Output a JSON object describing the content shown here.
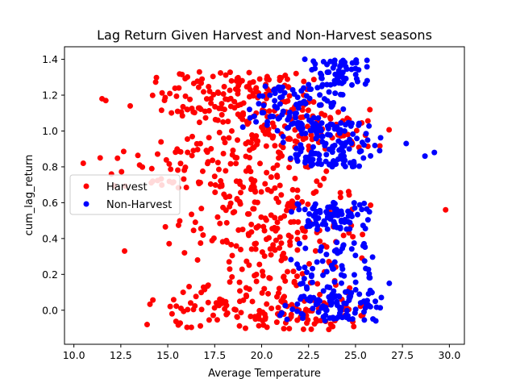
{
  "chart_data": {
    "type": "scatter",
    "title": "Lag Return Given Harvest and Non-Harvest seasons",
    "xlabel": "Average Temperature",
    "ylabel": "cum_lag_return",
    "xlim": [
      9.5,
      30.8
    ],
    "ylim": [
      -0.19,
      1.47
    ],
    "xticks": [
      "10.0",
      "12.5",
      "15.0",
      "17.5",
      "20.0",
      "22.5",
      "25.0",
      "27.5",
      "30.0"
    ],
    "yticks": [
      "0.0",
      "0.2",
      "0.4",
      "0.6",
      "0.8",
      "1.0",
      "1.2",
      "1.4"
    ],
    "legend": "center-left",
    "grid": false,
    "series": [
      {
        "name": "Harvest",
        "color": "#ff0000",
        "clusters": [
          {
            "x_min": 13.5,
            "x_max": 26.8,
            "y_min": -0.11,
            "y_max": 0.06,
            "count": 120
          },
          {
            "x_min": 15.0,
            "x_max": 26.0,
            "y_min": 0.05,
            "y_max": 0.3,
            "count": 70
          },
          {
            "x_min": 15.0,
            "x_max": 26.0,
            "y_min": 0.3,
            "y_max": 0.45,
            "count": 60
          },
          {
            "x_min": 14.8,
            "x_max": 26.2,
            "y_min": 0.45,
            "y_max": 0.68,
            "count": 90
          },
          {
            "x_min": 11.2,
            "x_max": 24.5,
            "y_min": 0.68,
            "y_max": 0.9,
            "count": 100
          },
          {
            "x_min": 14.5,
            "x_max": 27.5,
            "y_min": 0.9,
            "y_max": 1.12,
            "count": 130
          },
          {
            "x_min": 13.5,
            "x_max": 23.8,
            "y_min": 1.1,
            "y_max": 1.33,
            "count": 130
          }
        ],
        "points": [
          {
            "x": 10.5,
            "y": 0.82
          },
          {
            "x": 11.4,
            "y": 0.85
          },
          {
            "x": 11.5,
            "y": 1.18
          },
          {
            "x": 11.7,
            "y": 1.17
          },
          {
            "x": 12.0,
            "y": 0.76
          },
          {
            "x": 12.7,
            "y": 0.33
          },
          {
            "x": 13.0,
            "y": 1.14
          },
          {
            "x": 13.5,
            "y": 0.81
          },
          {
            "x": 29.8,
            "y": 0.56
          },
          {
            "x": 13.9,
            "y": -0.08
          },
          {
            "x": 14.2,
            "y": 0.72
          }
        ]
      },
      {
        "name": "Non-Harvest",
        "color": "#0000ff",
        "clusters": [
          {
            "x_min": 20.8,
            "x_max": 26.8,
            "y_min": -0.06,
            "y_max": 0.08,
            "count": 90
          },
          {
            "x_min": 20.5,
            "x_max": 26.5,
            "y_min": 0.08,
            "y_max": 0.38,
            "count": 70
          },
          {
            "x_min": 21.0,
            "x_max": 26.0,
            "y_min": 0.45,
            "y_max": 0.6,
            "count": 80
          },
          {
            "x_min": 20.5,
            "x_max": 27.0,
            "y_min": 0.8,
            "y_max": 1.05,
            "count": 130
          },
          {
            "x_min": 18.5,
            "x_max": 25.0,
            "y_min": 1.0,
            "y_max": 1.25,
            "count": 90
          },
          {
            "x_min": 22.0,
            "x_max": 26.0,
            "y_min": 1.25,
            "y_max": 1.4,
            "count": 60
          }
        ],
        "points": [
          {
            "x": 28.7,
            "y": 0.86
          },
          {
            "x": 29.2,
            "y": 0.88
          },
          {
            "x": 27.7,
            "y": 0.93
          },
          {
            "x": 26.8,
            "y": 0.15
          },
          {
            "x": 22.3,
            "y": 1.4
          }
        ]
      }
    ]
  }
}
